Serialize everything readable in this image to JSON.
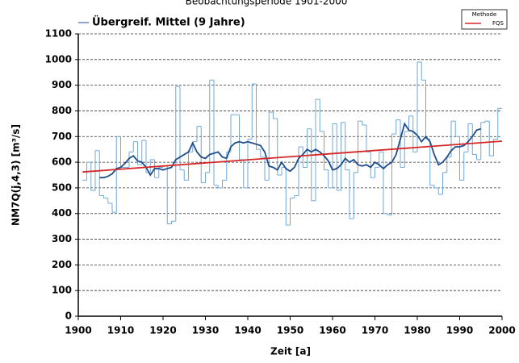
{
  "chart_data": {
    "type": "line",
    "title": "Beobachtungsperiode 1901-2000",
    "xlabel": "Zeit [a]",
    "ylabel": "NM7Q(j,4,3) [m³/s]",
    "legend_title": "Methode",
    "xlim": [
      1900,
      2000
    ],
    "xticks": [
      1900,
      1910,
      1920,
      1930,
      1940,
      1950,
      1960,
      1970,
      1980,
      1990,
      2000
    ],
    "ylim": [
      0,
      1100
    ],
    "yticks": [
      0,
      100,
      200,
      300,
      400,
      500,
      600,
      700,
      800,
      900,
      1000,
      1100
    ],
    "grid": true,
    "series": [
      {
        "style": "step",
        "color": "#6fa8dc",
        "x": [
          1901,
          1902,
          1903,
          1904,
          1905,
          1906,
          1907,
          1908,
          1909,
          1910,
          1911,
          1912,
          1913,
          1914,
          1915,
          1916,
          1917,
          1918,
          1919,
          1920,
          1921,
          1922,
          1923,
          1924,
          1925,
          1926,
          1927,
          1928,
          1929,
          1930,
          1931,
          1932,
          1933,
          1934,
          1935,
          1936,
          1937,
          1938,
          1939,
          1940,
          1941,
          1942,
          1943,
          1944,
          1945,
          1946,
          1947,
          1948,
          1949,
          1950,
          1951,
          1952,
          1953,
          1954,
          1955,
          1956,
          1957,
          1958,
          1959,
          1960,
          1961,
          1962,
          1963,
          1964,
          1965,
          1966,
          1967,
          1968,
          1969,
          1970,
          1971,
          1972,
          1973,
          1974,
          1975,
          1976,
          1977,
          1978,
          1979,
          1980,
          1981,
          1982,
          1983,
          1984,
          1985,
          1986,
          1987,
          1988,
          1989,
          1990,
          1991,
          1992,
          1993,
          1994,
          1995,
          1996,
          1997,
          1998,
          1999
        ],
        "values": [
          530,
          600,
          490,
          645,
          470,
          460,
          440,
          405,
          700,
          580,
          580,
          640,
          680,
          590,
          685,
          560,
          610,
          540,
          580,
          585,
          360,
          370,
          895,
          570,
          530,
          640,
          680,
          740,
          520,
          560,
          920,
          510,
          500,
          530,
          640,
          785,
          785,
          610,
          500,
          690,
          905,
          650,
          620,
          530,
          795,
          770,
          550,
          580,
          355,
          460,
          470,
          660,
          580,
          730,
          450,
          845,
          720,
          570,
          500,
          750,
          490,
          755,
          570,
          380,
          560,
          760,
          745,
          640,
          540,
          580,
          640,
          400,
          395,
          710,
          765,
          580,
          720,
          780,
          640,
          990,
          920,
          690,
          510,
          500,
          475,
          560,
          620,
          760,
          700,
          530,
          640,
          750,
          630,
          610,
          755,
          760,
          625,
          690,
          810
        ]
      },
      {
        "style": "line",
        "color": "#1f4e8c",
        "name": "Übergreif. Mittel (9 Jahre)",
        "legend": "top-left",
        "x": [
          1905,
          1906,
          1907,
          1908,
          1909,
          1910,
          1911,
          1912,
          1913,
          1914,
          1915,
          1916,
          1917,
          1918,
          1919,
          1920,
          1921,
          1922,
          1923,
          1924,
          1925,
          1926,
          1927,
          1928,
          1929,
          1930,
          1931,
          1932,
          1933,
          1934,
          1935,
          1936,
          1937,
          1938,
          1939,
          1940,
          1941,
          1942,
          1943,
          1944,
          1945,
          1946,
          1947,
          1948,
          1949,
          1950,
          1951,
          1952,
          1953,
          1954,
          1955,
          1956,
          1957,
          1958,
          1959,
          1960,
          1961,
          1962,
          1963,
          1964,
          1965,
          1966,
          1967,
          1968,
          1969,
          1970,
          1971,
          1972,
          1973,
          1974,
          1975,
          1976,
          1977,
          1978,
          1979,
          1980,
          1981,
          1982,
          1983,
          1984,
          1985,
          1986,
          1987,
          1988,
          1989,
          1990,
          1991,
          1992,
          1993,
          1994,
          1995
        ],
        "values": [
          540,
          540,
          545,
          555,
          575,
          580,
          595,
          615,
          625,
          605,
          600,
          580,
          550,
          575,
          575,
          570,
          575,
          580,
          610,
          620,
          630,
          640,
          675,
          640,
          620,
          615,
          630,
          635,
          640,
          620,
          615,
          660,
          675,
          680,
          675,
          680,
          675,
          670,
          665,
          640,
          585,
          580,
          570,
          600,
          575,
          565,
          580,
          615,
          630,
          650,
          640,
          650,
          640,
          625,
          605,
          570,
          575,
          590,
          615,
          600,
          610,
          590,
          585,
          590,
          580,
          600,
          590,
          575,
          590,
          600,
          630,
          690,
          750,
          725,
          720,
          705,
          680,
          700,
          680,
          630,
          590,
          600,
          620,
          645,
          660,
          660,
          665,
          680,
          700,
          725,
          730
        ]
      },
      {
        "style": "line",
        "color": "#d62728",
        "name": "FQS",
        "legend": "top-right",
        "x": [
          1901,
          2000
        ],
        "values": [
          562,
          682
        ]
      }
    ]
  }
}
